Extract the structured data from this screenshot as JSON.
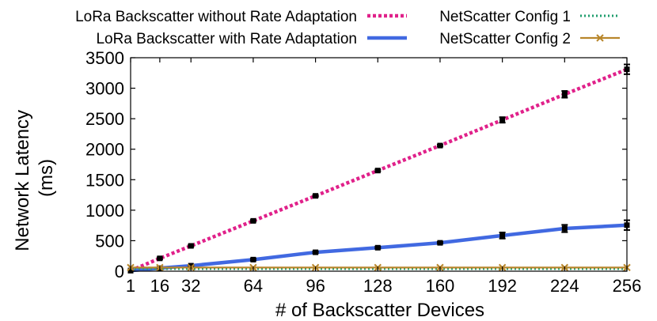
{
  "chart_data": {
    "type": "line",
    "xlabel": "# of Backscatter Devices",
    "ylabel_lines": [
      "Network Latency",
      "(ms)"
    ],
    "xlim": [
      1,
      256
    ],
    "ylim": [
      0,
      3500
    ],
    "x_ticks": [
      1,
      16,
      32,
      64,
      96,
      128,
      160,
      192,
      224,
      256
    ],
    "y_ticks": [
      0,
      500,
      1000,
      1500,
      2000,
      2500,
      3000,
      3500
    ],
    "grid": false,
    "legend_position": "top",
    "series": [
      {
        "name": "LoRa Backscatter without Rate Adaptation",
        "color": "#e0218a",
        "style": "dotted-thick",
        "x": [
          1,
          16,
          32,
          64,
          96,
          128,
          160,
          192,
          224,
          256
        ],
        "y": [
          10,
          210,
          415,
          825,
          1235,
          1650,
          2060,
          2480,
          2900,
          3310
        ],
        "err": [
          0,
          15,
          15,
          15,
          15,
          15,
          15,
          45,
          55,
          80
        ]
      },
      {
        "name": "LoRa Backscatter with Rate Adaptation",
        "color": "#4169e1",
        "style": "solid-thick",
        "x": [
          1,
          16,
          32,
          64,
          96,
          128,
          160,
          192,
          224,
          256
        ],
        "y": [
          10,
          50,
          90,
          190,
          310,
          385,
          465,
          585,
          700,
          755
        ],
        "err": [
          0,
          10,
          10,
          15,
          15,
          15,
          15,
          50,
          60,
          80
        ]
      },
      {
        "name": "NetScatter Config 1",
        "color": "#1f9e6e",
        "style": "dotted",
        "x": [
          1,
          16,
          32,
          64,
          96,
          128,
          160,
          192,
          224,
          256
        ],
        "y": [
          40,
          40,
          40,
          40,
          40,
          40,
          40,
          40,
          40,
          40
        ],
        "err": [
          0,
          0,
          0,
          0,
          0,
          0,
          0,
          0,
          0,
          0
        ]
      },
      {
        "name": "NetScatter Config 2",
        "color": "#b8862b",
        "style": "solid-marker",
        "x": [
          1,
          16,
          32,
          64,
          96,
          128,
          160,
          192,
          224,
          256
        ],
        "y": [
          60,
          60,
          60,
          60,
          60,
          60,
          60,
          60,
          60,
          60
        ],
        "err": [
          0,
          0,
          0,
          0,
          0,
          0,
          0,
          0,
          0,
          0
        ]
      }
    ]
  }
}
